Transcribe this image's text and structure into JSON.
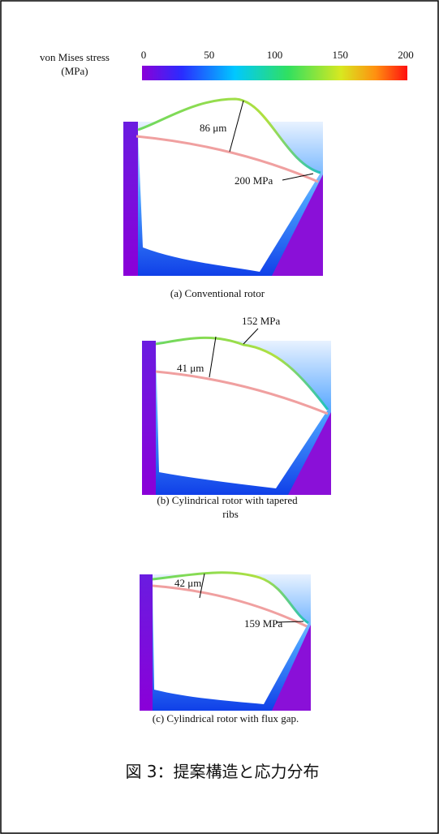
{
  "colorbar": {
    "label": [
      "von Mises stress",
      "(MPa)"
    ],
    "ticks": [
      0,
      50,
      100,
      150,
      200
    ]
  },
  "panels": [
    {
      "annotations": [
        "86 μm",
        "200 MPa"
      ],
      "caption": [
        "(a)    Conventional rotor"
      ]
    },
    {
      "annotations": [
        "152 MPa",
        "41 μm"
      ],
      "caption": [
        "(b)    Cylindrical rotor with tapered",
        "ribs"
      ]
    },
    {
      "annotations": [
        "42 μm",
        "159 MPa"
      ],
      "caption": [
        "(c)    Cylindrical rotor with flux gap."
      ]
    }
  ],
  "figure_caption": "図 3：提案構造と応力分布"
}
